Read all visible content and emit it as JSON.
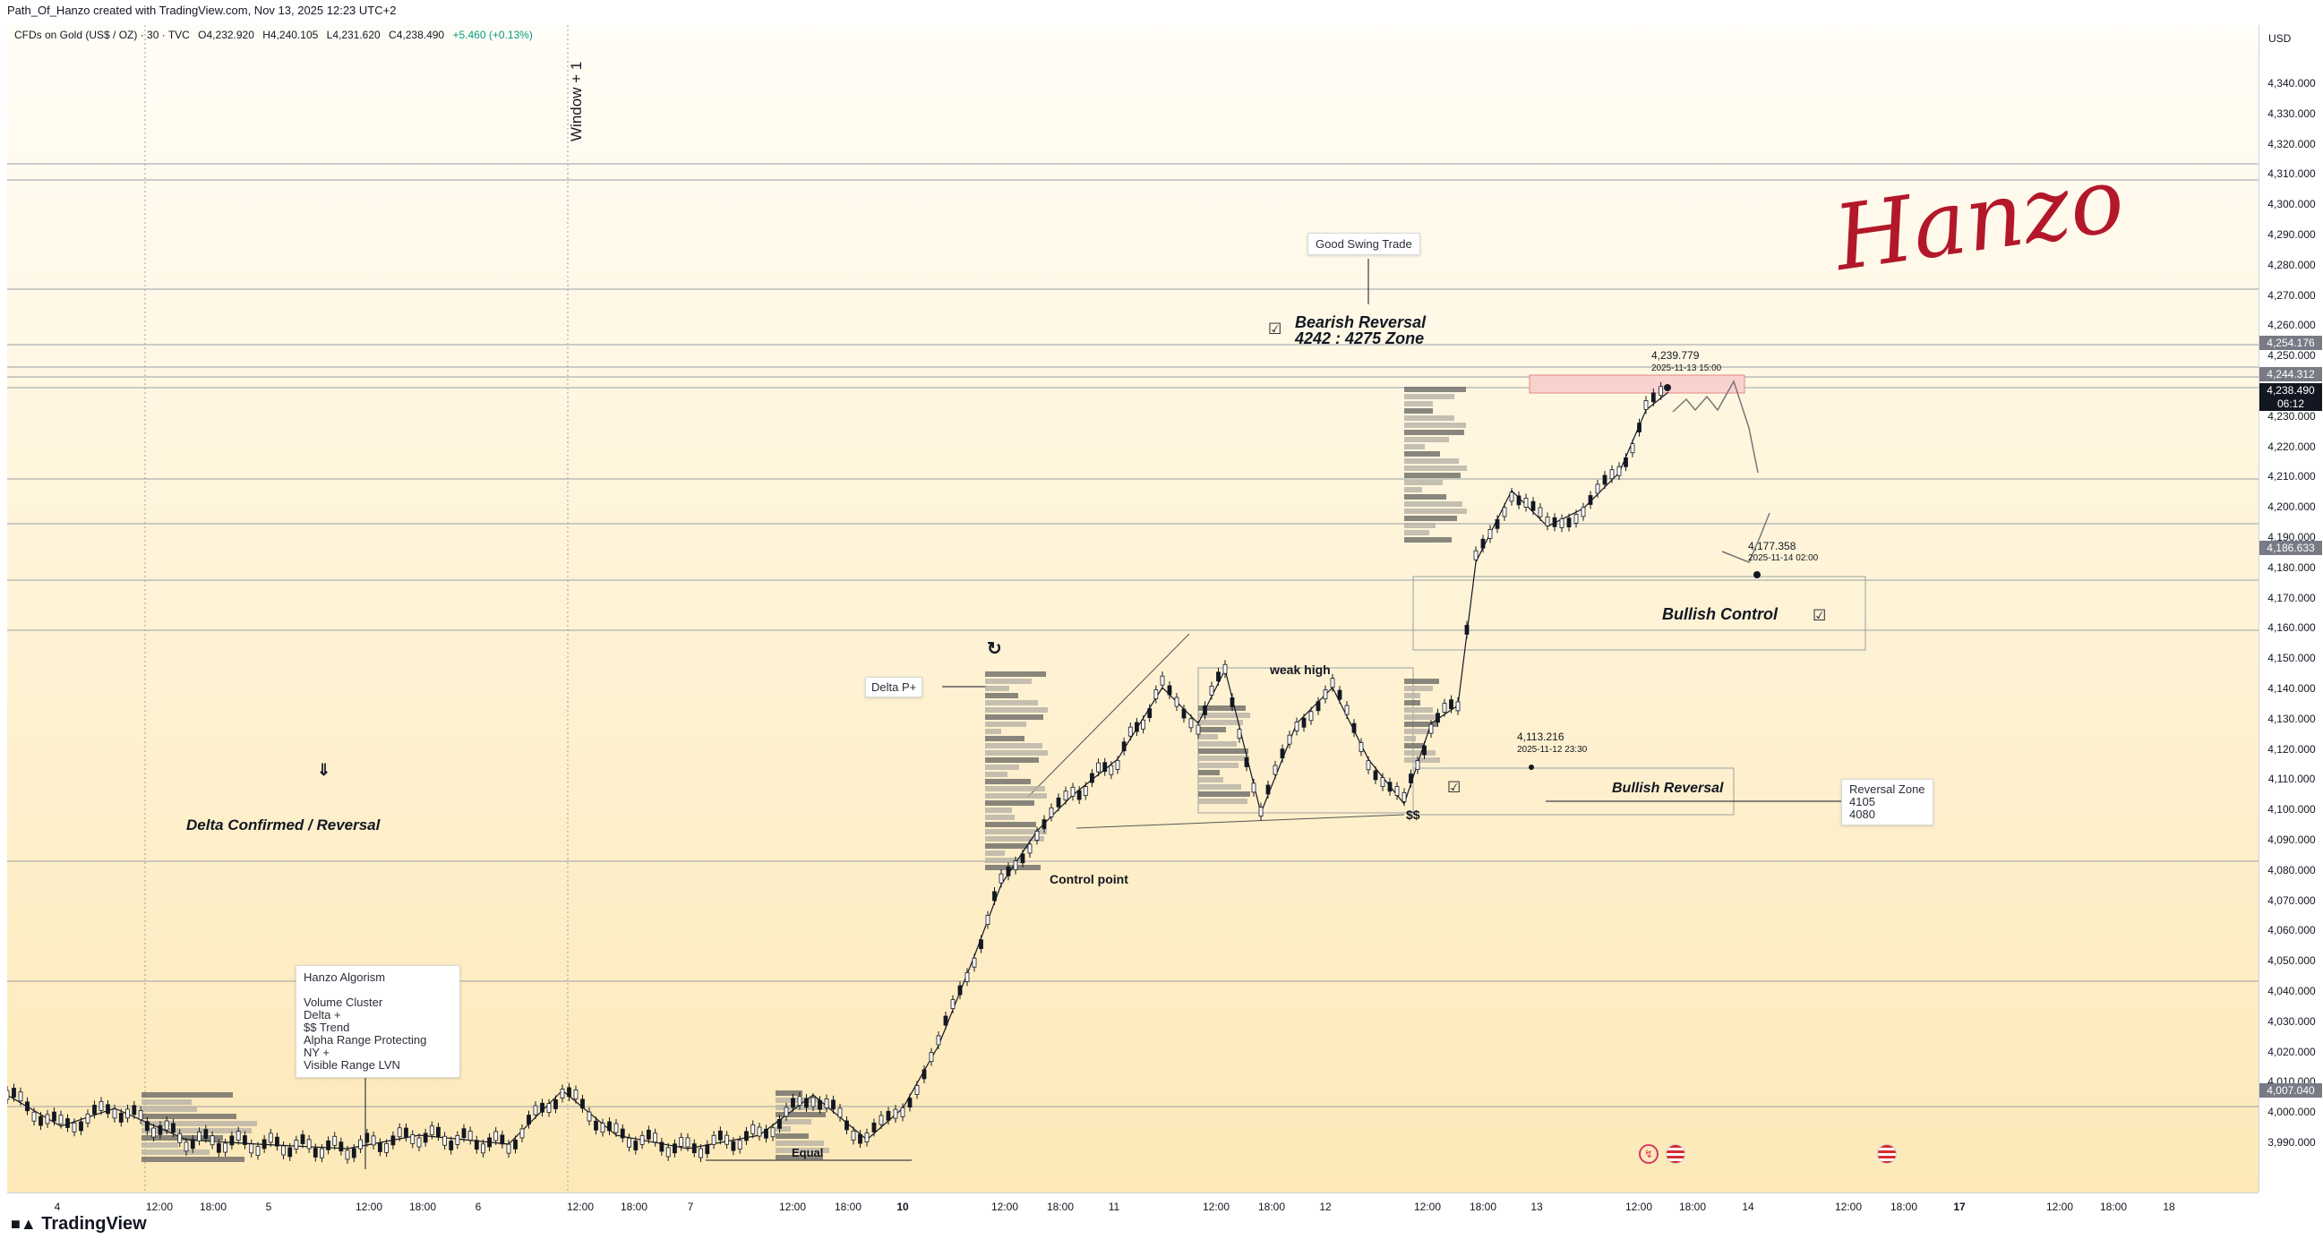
{
  "header": {
    "text": "Path_Of_Hanzo created with TradingView.com, Nov 13, 2025 12:23 UTC+2"
  },
  "symbol": {
    "name": "CFDs on Gold (US$ / OZ) · 30 · TVC",
    "open": "O4,232.920",
    "high": "H4,240.105",
    "low": "L4,231.620",
    "close": "C4,238.490",
    "change": "+5.460 (+0.13%)",
    "change_color": "#089981"
  },
  "price_axis": {
    "currency": "USD",
    "ticks": [
      "4,340.000",
      "4,330.000",
      "4,320.000",
      "4,310.000",
      "4,300.000",
      "4,290.000",
      "4,280.000",
      "4,270.000",
      "4,260.000",
      "4,250.000",
      "4,230.000",
      "4,220.000",
      "4,210.000",
      "4,200.000",
      "4,190.000",
      "4,180.000",
      "4,170.000",
      "4,160.000",
      "4,150.000",
      "4,140.000",
      "4,130.000",
      "4,120.000",
      "4,110.000",
      "4,100.000",
      "4,090.000",
      "4,080.000",
      "4,070.000",
      "4,060.000",
      "4,050.000",
      "4,040.000",
      "4,030.000",
      "4,020.000",
      "4,010.000",
      "4,000.000",
      "3,990.000"
    ],
    "badges": [
      {
        "value": "4,254.176",
        "color": "#787b86"
      },
      {
        "value": "4,244.312",
        "color": "#787b86"
      },
      {
        "value": "4,238.490",
        "color": "#131722"
      },
      {
        "value": "06:12",
        "color": "#131722"
      },
      {
        "value": "4,186.633",
        "color": "#787b86"
      },
      {
        "value": "4,007.040",
        "color": "#787b86"
      }
    ]
  },
  "time_axis": {
    "ticks": [
      {
        "label": "4",
        "bold": false
      },
      {
        "label": "12:00",
        "bold": false
      },
      {
        "label": "18:00",
        "bold": false
      },
      {
        "label": "5",
        "bold": false
      },
      {
        "label": "12:00",
        "bold": false
      },
      {
        "label": "18:00",
        "bold": false
      },
      {
        "label": "6",
        "bold": false
      },
      {
        "label": "12:00",
        "bold": false
      },
      {
        "label": "18:00",
        "bold": false
      },
      {
        "label": "7",
        "bold": false
      },
      {
        "label": "12:00",
        "bold": false
      },
      {
        "label": "18:00",
        "bold": false
      },
      {
        "label": "10",
        "bold": true
      },
      {
        "label": "12:00",
        "bold": false
      },
      {
        "label": "18:00",
        "bold": false
      },
      {
        "label": "11",
        "bold": false
      },
      {
        "label": "12:00",
        "bold": false
      },
      {
        "label": "18:00",
        "bold": false
      },
      {
        "label": "12",
        "bold": false
      },
      {
        "label": "12:00",
        "bold": false
      },
      {
        "label": "18:00",
        "bold": false
      },
      {
        "label": "13",
        "bold": false
      },
      {
        "label": "12:00",
        "bold": false
      },
      {
        "label": "18:00",
        "bold": false
      },
      {
        "label": "14",
        "bold": false
      },
      {
        "label": "12:00",
        "bold": false
      },
      {
        "label": "18:00",
        "bold": false
      },
      {
        "label": "17",
        "bold": true
      },
      {
        "label": "12:00",
        "bold": false
      },
      {
        "label": "18:00",
        "bold": false
      },
      {
        "label": "18",
        "bold": false
      }
    ]
  },
  "annotations": {
    "window_label": "Window + 1",
    "good_swing": "Good Swing Trade",
    "bearish_title": "Bearish Reversal",
    "bearish_zone": "4242 : 4275 Zone",
    "high_price": "4,239.779",
    "high_time": "2025-11-13 15:00",
    "low_price": "4,177.358",
    "low_time": "2025-11-14 02:00",
    "bullish_control": "Bullish Control",
    "weak_high": "weak high",
    "delta_p": "Delta P+",
    "control_point": "Control point",
    "point_price": "4,113.216",
    "point_time": "2025-11-12 23:30",
    "bullish_reversal": "Bullish Reversal",
    "dollars": "$$",
    "reversal_zone_title": "Reversal Zone",
    "reversal_zone_1": "4105",
    "reversal_zone_2": "4080",
    "delta_confirmed": "Delta Confirmed / Reversal",
    "equal": "Equal",
    "signature": "Hanzo"
  },
  "algo_box": {
    "title": "Hanzo Algorism",
    "lines": [
      "Volume Cluster",
      "Delta +",
      "$$ Trend",
      "Alpha Range Protecting",
      "NY +",
      "Visible Range LVN"
    ]
  },
  "brand": {
    "name": "TradingView"
  },
  "colors": {
    "up": "#131722",
    "zone_red": "#f8d2cf",
    "signature": "#b3182a"
  }
}
